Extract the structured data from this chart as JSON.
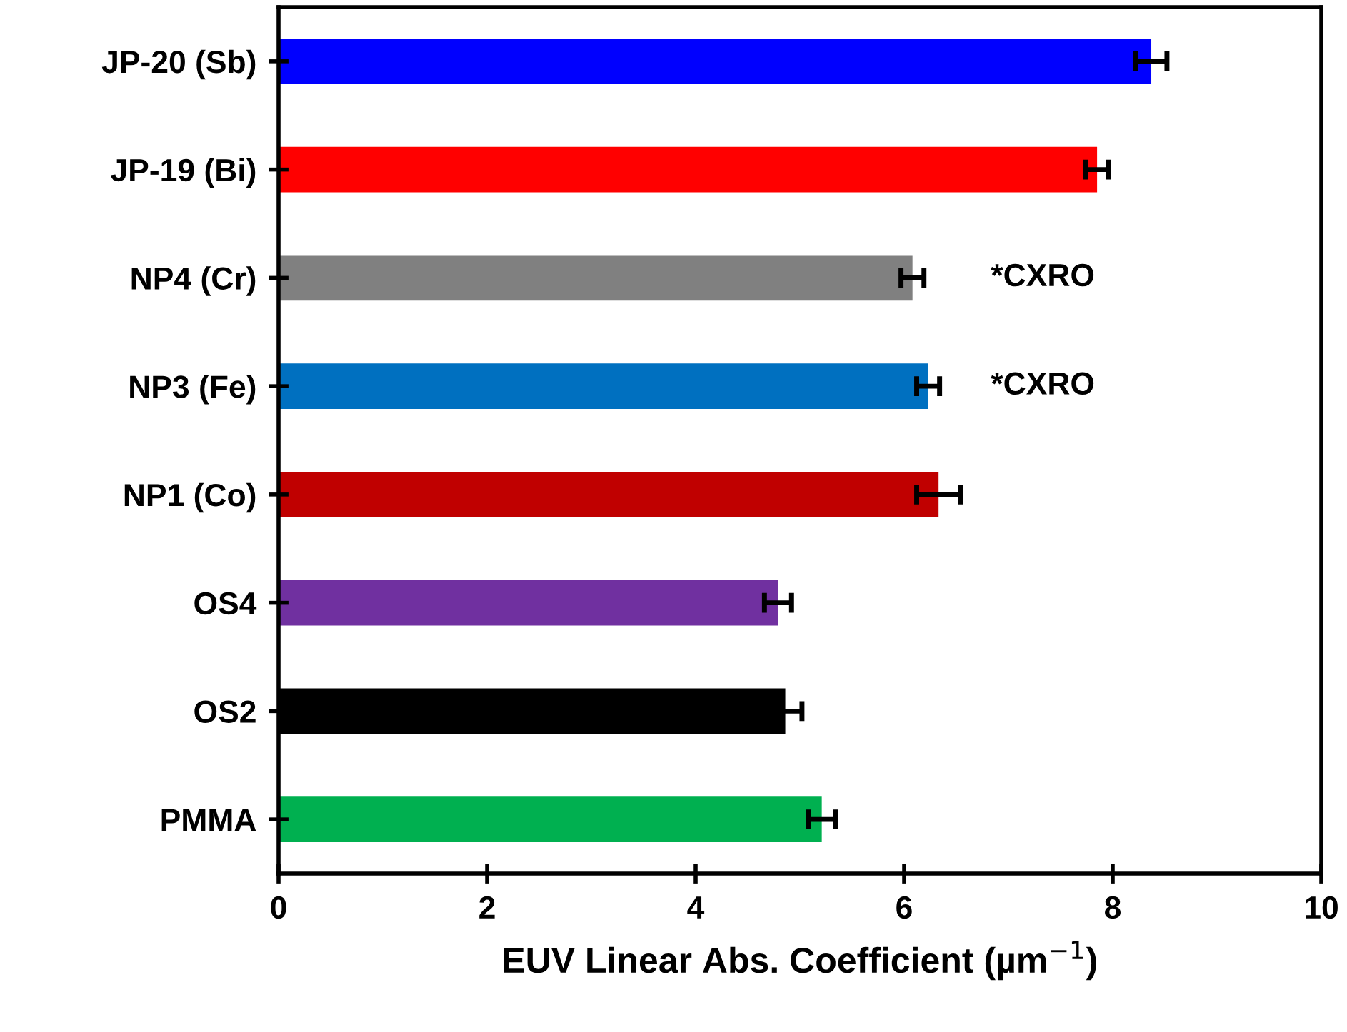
{
  "chart_data": {
    "type": "bar",
    "orientation": "horizontal",
    "xlabel": "EUV Linear Abs. Coefficient (µm$^{−1}$)",
    "categories": [
      "JP-20 (Sb)",
      "JP-19 (Bi)",
      "NP4 (Cr)",
      "NP3 (Fe)",
      "NP1 (Co)",
      "OS4",
      "OS2",
      "PMMA"
    ],
    "values": [
      8.37,
      7.85,
      6.08,
      6.23,
      6.33,
      4.79,
      4.86,
      5.21
    ],
    "errors": [
      0.15,
      0.11,
      0.11,
      0.11,
      0.21,
      0.13,
      0.16,
      0.13
    ],
    "colors": [
      "#0000ff",
      "#ff0000",
      "#808080",
      "#0070c0",
      "#c00000",
      "#7030a0",
      "#000000",
      "#00b050"
    ],
    "xlim": [
      0,
      10
    ],
    "xticks": [
      0,
      2,
      4,
      6,
      8,
      10
    ],
    "grid": false,
    "annotations": [
      "*CXRO",
      "*CXRO"
    ]
  }
}
